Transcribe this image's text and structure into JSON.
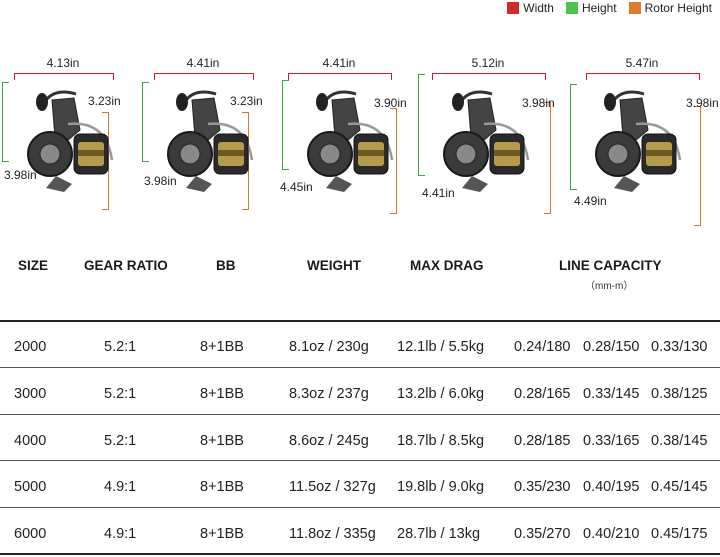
{
  "legend": [
    {
      "label": "Width",
      "color": "#d62a2a"
    },
    {
      "label": "Height",
      "color": "#4cc44c"
    },
    {
      "label": "Rotor Height",
      "color": "#e07a2e"
    }
  ],
  "reels": [
    {
      "width": "4.13in",
      "height": "3.98in",
      "rotor_height": "3.23in"
    },
    {
      "width": "4.41in",
      "height": "3.98in",
      "rotor_height": "3.23in"
    },
    {
      "width": "4.41in",
      "height": "4.45in",
      "rotor_height": "3.90in"
    },
    {
      "width": "5.12in",
      "height": "4.41in",
      "rotor_height": "3.98in"
    },
    {
      "width": "5.47in",
      "height": "4.49in",
      "rotor_height": "3.98in"
    }
  ],
  "table": {
    "headers": {
      "size": "SIZE",
      "gear_ratio": "GEAR RATIO",
      "bb": "BB",
      "weight": "WEIGHT",
      "max_drag": "MAX DRAG",
      "line_capacity": "LINE CAPACITY",
      "line_capacity_unit": "（mm-m）"
    },
    "rows": [
      {
        "size": "2000",
        "gear_ratio": "5.2:1",
        "bb": "8+1BB",
        "weight": "8.1oz / 230g",
        "max_drag": "12.1lb / 5.5kg",
        "cap1": "0.24/180",
        "cap2": "0.28/150",
        "cap3": "0.33/130"
      },
      {
        "size": "3000",
        "gear_ratio": "5.2:1",
        "bb": "8+1BB",
        "weight": "8.3oz / 237g",
        "max_drag": "13.2lb / 6.0kg",
        "cap1": "0.28/165",
        "cap2": "0.33/145",
        "cap3": "0.38/125"
      },
      {
        "size": "4000",
        "gear_ratio": "5.2:1",
        "bb": "8+1BB",
        "weight": "8.6oz / 245g",
        "max_drag": "18.7lb / 8.5kg",
        "cap1": "0.28/185",
        "cap2": "0.33/165",
        "cap3": "0.38/145"
      },
      {
        "size": "5000",
        "gear_ratio": "4.9:1",
        "bb": "8+1BB",
        "weight": "11.5oz / 327g",
        "max_drag": "19.8lb / 9.0kg",
        "cap1": "0.35/230",
        "cap2": "0.40/195",
        "cap3": "0.45/145"
      },
      {
        "size": "6000",
        "gear_ratio": "4.9:1",
        "bb": "8+1BB",
        "weight": "11.8oz / 335g",
        "max_drag": "28.7lb / 13kg",
        "cap1": "0.35/270",
        "cap2": "0.40/210",
        "cap3": "0.45/175"
      }
    ]
  }
}
